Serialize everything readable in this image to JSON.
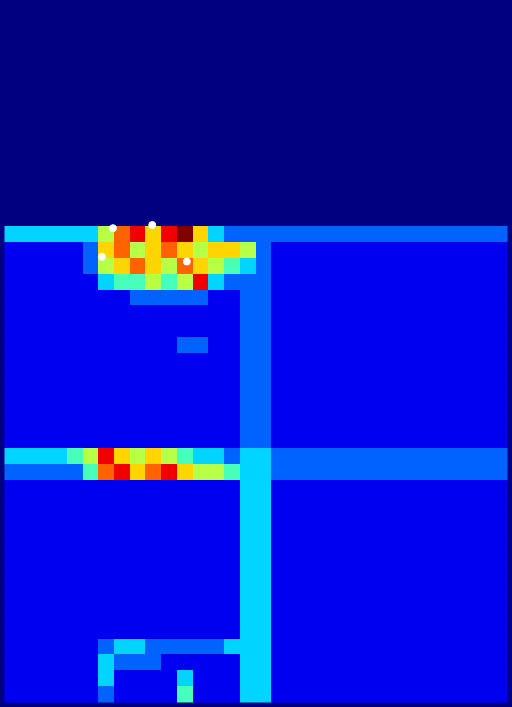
{
  "chart_data": {
    "type": "heatmap",
    "xlim": [
      0,
      32
    ],
    "ylim": [
      0,
      44
    ],
    "tick_labels": false,
    "color_range": [
      0,
      9
    ],
    "cells": [
      [
        0,
        0,
        0,
        0,
        0,
        0,
        0,
        0,
        0,
        0,
        0,
        0,
        0,
        0,
        0,
        0,
        0,
        0,
        0,
        0,
        0,
        0,
        0,
        0,
        0,
        0,
        0,
        0,
        0,
        0,
        0,
        0
      ],
      [
        0,
        0,
        0,
        0,
        0,
        0,
        0,
        0,
        0,
        0,
        0,
        0,
        0,
        0,
        0,
        0,
        0,
        0,
        0,
        0,
        0,
        0,
        0,
        0,
        0,
        0,
        0,
        0,
        0,
        0,
        0,
        0
      ],
      [
        0,
        0,
        0,
        0,
        0,
        0,
        0,
        0,
        0,
        0,
        0,
        0,
        0,
        0,
        0,
        0,
        0,
        0,
        0,
        0,
        0,
        0,
        0,
        0,
        0,
        0,
        0,
        0,
        0,
        0,
        0,
        0
      ],
      [
        0,
        0,
        0,
        0,
        0,
        0,
        0,
        0,
        0,
        0,
        0,
        0,
        0,
        0,
        0,
        0,
        0,
        0,
        0,
        0,
        0,
        0,
        0,
        0,
        0,
        0,
        0,
        0,
        0,
        0,
        0,
        0
      ],
      [
        0,
        0,
        0,
        0,
        0,
        0,
        0,
        0,
        0,
        0,
        0,
        0,
        0,
        0,
        0,
        0,
        0,
        0,
        0,
        0,
        0,
        0,
        0,
        0,
        0,
        0,
        0,
        0,
        0,
        0,
        0,
        0
      ],
      [
        0,
        0,
        0,
        0,
        0,
        0,
        0,
        0,
        0,
        0,
        0,
        0,
        0,
        0,
        0,
        0,
        0,
        0,
        0,
        0,
        0,
        0,
        0,
        0,
        0,
        0,
        0,
        0,
        0,
        0,
        0,
        0
      ],
      [
        0,
        0,
        0,
        0,
        0,
        0,
        0,
        0,
        0,
        0,
        0,
        0,
        0,
        0,
        0,
        0,
        0,
        0,
        0,
        0,
        0,
        0,
        0,
        0,
        0,
        0,
        0,
        0,
        0,
        0,
        0,
        0
      ],
      [
        0,
        0,
        0,
        0,
        0,
        0,
        0,
        0,
        0,
        0,
        0,
        0,
        0,
        0,
        0,
        0,
        0,
        0,
        0,
        0,
        0,
        0,
        0,
        0,
        0,
        0,
        0,
        0,
        0,
        0,
        0,
        0
      ],
      [
        0,
        0,
        0,
        0,
        0,
        0,
        0,
        0,
        0,
        0,
        0,
        0,
        0,
        0,
        0,
        0,
        0,
        0,
        0,
        0,
        0,
        0,
        0,
        0,
        0,
        0,
        0,
        0,
        0,
        0,
        0,
        0
      ],
      [
        0,
        0,
        0,
        0,
        0,
        0,
        0,
        0,
        0,
        0,
        0,
        0,
        0,
        0,
        0,
        0,
        0,
        0,
        0,
        0,
        0,
        0,
        0,
        0,
        0,
        0,
        0,
        0,
        0,
        0,
        0,
        0
      ],
      [
        0,
        0,
        0,
        0,
        0,
        0,
        0,
        0,
        0,
        0,
        0,
        0,
        0,
        0,
        0,
        0,
        0,
        0,
        0,
        0,
        0,
        0,
        0,
        0,
        0,
        0,
        0,
        0,
        0,
        0,
        0,
        0
      ],
      [
        0,
        0,
        0,
        0,
        0,
        0,
        0,
        0,
        0,
        0,
        0,
        0,
        0,
        0,
        0,
        0,
        0,
        0,
        0,
        0,
        0,
        0,
        0,
        0,
        0,
        0,
        0,
        0,
        0,
        0,
        0,
        0
      ],
      [
        0,
        0,
        0,
        0,
        0,
        0,
        0,
        0,
        0,
        0,
        0,
        0,
        0,
        0,
        0,
        0,
        0,
        0,
        0,
        0,
        0,
        0,
        0,
        0,
        0,
        0,
        0,
        0,
        0,
        0,
        0,
        0
      ],
      [
        0,
        0,
        0,
        0,
        0,
        0,
        0,
        0,
        0,
        0,
        0,
        0,
        0,
        0,
        0,
        0,
        0,
        0,
        0,
        0,
        0,
        0,
        0,
        0,
        0,
        0,
        0,
        0,
        0,
        0,
        0,
        0
      ],
      [
        3,
        3,
        3,
        3,
        3,
        3,
        5,
        7,
        8,
        6,
        8,
        9,
        6,
        3,
        2,
        2,
        2,
        2,
        2,
        2,
        2,
        2,
        2,
        2,
        2,
        2,
        2,
        2,
        2,
        2,
        2,
        2
      ],
      [
        1,
        1,
        1,
        1,
        1,
        2,
        6,
        7,
        5,
        6,
        7,
        6,
        5,
        6,
        6,
        5,
        2,
        1,
        1,
        1,
        1,
        1,
        1,
        1,
        1,
        1,
        1,
        1,
        1,
        1,
        1,
        1
      ],
      [
        1,
        1,
        1,
        1,
        1,
        2,
        5,
        6,
        7,
        6,
        5,
        7,
        6,
        5,
        4,
        3,
        2,
        1,
        1,
        1,
        1,
        1,
        1,
        1,
        1,
        1,
        1,
        1,
        1,
        1,
        1,
        1
      ],
      [
        1,
        1,
        1,
        1,
        1,
        1,
        3,
        4,
        4,
        5,
        4,
        5,
        8,
        3,
        2,
        2,
        2,
        1,
        1,
        1,
        1,
        1,
        1,
        1,
        1,
        1,
        1,
        1,
        1,
        1,
        1,
        1
      ],
      [
        1,
        1,
        1,
        1,
        1,
        1,
        1,
        1,
        2,
        2,
        2,
        2,
        2,
        1,
        1,
        2,
        2,
        1,
        1,
        1,
        1,
        1,
        1,
        1,
        1,
        1,
        1,
        1,
        1,
        1,
        1,
        1
      ],
      [
        1,
        1,
        1,
        1,
        1,
        1,
        1,
        1,
        1,
        1,
        1,
        1,
        1,
        1,
        1,
        2,
        2,
        1,
        1,
        1,
        1,
        1,
        1,
        1,
        1,
        1,
        1,
        1,
        1,
        1,
        1,
        1
      ],
      [
        1,
        1,
        1,
        1,
        1,
        1,
        1,
        1,
        1,
        1,
        1,
        1,
        1,
        1,
        1,
        2,
        2,
        1,
        1,
        1,
        1,
        1,
        1,
        1,
        1,
        1,
        1,
        1,
        1,
        1,
        1,
        1
      ],
      [
        1,
        1,
        1,
        1,
        1,
        1,
        1,
        1,
        1,
        1,
        1,
        2,
        2,
        1,
        1,
        2,
        2,
        1,
        1,
        1,
        1,
        1,
        1,
        1,
        1,
        1,
        1,
        1,
        1,
        1,
        1,
        1
      ],
      [
        1,
        1,
        1,
        1,
        1,
        1,
        1,
        1,
        1,
        1,
        1,
        1,
        1,
        1,
        1,
        2,
        2,
        1,
        1,
        1,
        1,
        1,
        1,
        1,
        1,
        1,
        1,
        1,
        1,
        1,
        1,
        1
      ],
      [
        1,
        1,
        1,
        1,
        1,
        1,
        1,
        1,
        1,
        1,
        1,
        1,
        1,
        1,
        1,
        2,
        2,
        1,
        1,
        1,
        1,
        1,
        1,
        1,
        1,
        1,
        1,
        1,
        1,
        1,
        1,
        1
      ],
      [
        1,
        1,
        1,
        1,
        1,
        1,
        1,
        1,
        1,
        1,
        1,
        1,
        1,
        1,
        1,
        2,
        2,
        1,
        1,
        1,
        1,
        1,
        1,
        1,
        1,
        1,
        1,
        1,
        1,
        1,
        1,
        1
      ],
      [
        1,
        1,
        1,
        1,
        1,
        1,
        1,
        1,
        1,
        1,
        1,
        1,
        1,
        1,
        1,
        2,
        2,
        1,
        1,
        1,
        1,
        1,
        1,
        1,
        1,
        1,
        1,
        1,
        1,
        1,
        1,
        1
      ],
      [
        1,
        1,
        1,
        1,
        1,
        1,
        1,
        1,
        1,
        1,
        1,
        1,
        1,
        1,
        1,
        2,
        2,
        1,
        1,
        1,
        1,
        1,
        1,
        1,
        1,
        1,
        1,
        1,
        1,
        1,
        1,
        1
      ],
      [
        1,
        1,
        1,
        1,
        1,
        1,
        1,
        1,
        1,
        1,
        1,
        1,
        1,
        1,
        1,
        2,
        2,
        1,
        1,
        1,
        1,
        1,
        1,
        1,
        1,
        1,
        1,
        1,
        1,
        1,
        1,
        1
      ],
      [
        3,
        3,
        3,
        3,
        4,
        5,
        8,
        6,
        5,
        6,
        5,
        4,
        3,
        3,
        2,
        3,
        3,
        2,
        2,
        2,
        2,
        2,
        2,
        2,
        2,
        2,
        2,
        2,
        2,
        2,
        2,
        2
      ],
      [
        2,
        2,
        2,
        2,
        2,
        4,
        7,
        8,
        6,
        7,
        8,
        6,
        5,
        5,
        4,
        3,
        3,
        2,
        2,
        2,
        2,
        2,
        2,
        2,
        2,
        2,
        2,
        2,
        2,
        2,
        2,
        2
      ],
      [
        1,
        1,
        1,
        1,
        1,
        1,
        1,
        1,
        1,
        1,
        1,
        1,
        1,
        1,
        1,
        3,
        3,
        1,
        1,
        1,
        1,
        1,
        1,
        1,
        1,
        1,
        1,
        1,
        1,
        1,
        1,
        1
      ],
      [
        1,
        1,
        1,
        1,
        1,
        1,
        1,
        1,
        1,
        1,
        1,
        1,
        1,
        1,
        1,
        3,
        3,
        1,
        1,
        1,
        1,
        1,
        1,
        1,
        1,
        1,
        1,
        1,
        1,
        1,
        1,
        1
      ],
      [
        1,
        1,
        1,
        1,
        1,
        1,
        1,
        1,
        1,
        1,
        1,
        1,
        1,
        1,
        1,
        3,
        3,
        1,
        1,
        1,
        1,
        1,
        1,
        1,
        1,
        1,
        1,
        1,
        1,
        1,
        1,
        1
      ],
      [
        1,
        1,
        1,
        1,
        1,
        1,
        1,
        1,
        1,
        1,
        1,
        1,
        1,
        1,
        1,
        3,
        3,
        1,
        1,
        1,
        1,
        1,
        1,
        1,
        1,
        1,
        1,
        1,
        1,
        1,
        1,
        1
      ],
      [
        1,
        1,
        1,
        1,
        1,
        1,
        1,
        1,
        1,
        1,
        1,
        1,
        1,
        1,
        1,
        3,
        3,
        1,
        1,
        1,
        1,
        1,
        1,
        1,
        1,
        1,
        1,
        1,
        1,
        1,
        1,
        1
      ],
      [
        1,
        1,
        1,
        1,
        1,
        1,
        1,
        1,
        1,
        1,
        1,
        1,
        1,
        1,
        1,
        3,
        3,
        1,
        1,
        1,
        1,
        1,
        1,
        1,
        1,
        1,
        1,
        1,
        1,
        1,
        1,
        1
      ],
      [
        1,
        1,
        1,
        1,
        1,
        1,
        1,
        1,
        1,
        1,
        1,
        1,
        1,
        1,
        1,
        3,
        3,
        1,
        1,
        1,
        1,
        1,
        1,
        1,
        1,
        1,
        1,
        1,
        1,
        1,
        1,
        1
      ],
      [
        1,
        1,
        1,
        1,
        1,
        1,
        1,
        1,
        1,
        1,
        1,
        1,
        1,
        1,
        1,
        3,
        3,
        1,
        1,
        1,
        1,
        1,
        1,
        1,
        1,
        1,
        1,
        1,
        1,
        1,
        1,
        1
      ],
      [
        1,
        1,
        1,
        1,
        1,
        1,
        1,
        1,
        1,
        1,
        1,
        1,
        1,
        1,
        1,
        3,
        3,
        1,
        1,
        1,
        1,
        1,
        1,
        1,
        1,
        1,
        1,
        1,
        1,
        1,
        1,
        1
      ],
      [
        1,
        1,
        1,
        1,
        1,
        1,
        1,
        1,
        1,
        1,
        1,
        1,
        1,
        1,
        1,
        3,
        3,
        1,
        1,
        1,
        1,
        1,
        1,
        1,
        1,
        1,
        1,
        1,
        1,
        1,
        1,
        1
      ],
      [
        1,
        1,
        1,
        1,
        1,
        1,
        2,
        3,
        3,
        2,
        2,
        2,
        2,
        2,
        3,
        3,
        3,
        1,
        1,
        1,
        1,
        1,
        1,
        1,
        1,
        1,
        1,
        1,
        1,
        1,
        1,
        1
      ],
      [
        1,
        1,
        1,
        1,
        1,
        1,
        3,
        2,
        2,
        2,
        1,
        1,
        1,
        1,
        1,
        3,
        3,
        1,
        1,
        1,
        1,
        1,
        1,
        1,
        1,
        1,
        1,
        1,
        1,
        1,
        1,
        1
      ],
      [
        1,
        1,
        1,
        1,
        1,
        1,
        3,
        1,
        1,
        1,
        1,
        3,
        1,
        1,
        1,
        3,
        3,
        1,
        1,
        1,
        1,
        1,
        1,
        1,
        1,
        1,
        1,
        1,
        1,
        1,
        1,
        1
      ],
      [
        1,
        1,
        1,
        1,
        1,
        1,
        2,
        1,
        1,
        1,
        1,
        4,
        1,
        1,
        1,
        3,
        3,
        1,
        1,
        1,
        1,
        1,
        1,
        1,
        1,
        1,
        1,
        1,
        1,
        1,
        1,
        1
      ]
    ],
    "points": {
      "type": "scatter",
      "color": "#ffffff",
      "marker": "circle",
      "x": [
        6.9,
        9.4,
        6.2,
        11.6
      ],
      "y": [
        14.1,
        13.9,
        15.9,
        16.2
      ]
    }
  }
}
